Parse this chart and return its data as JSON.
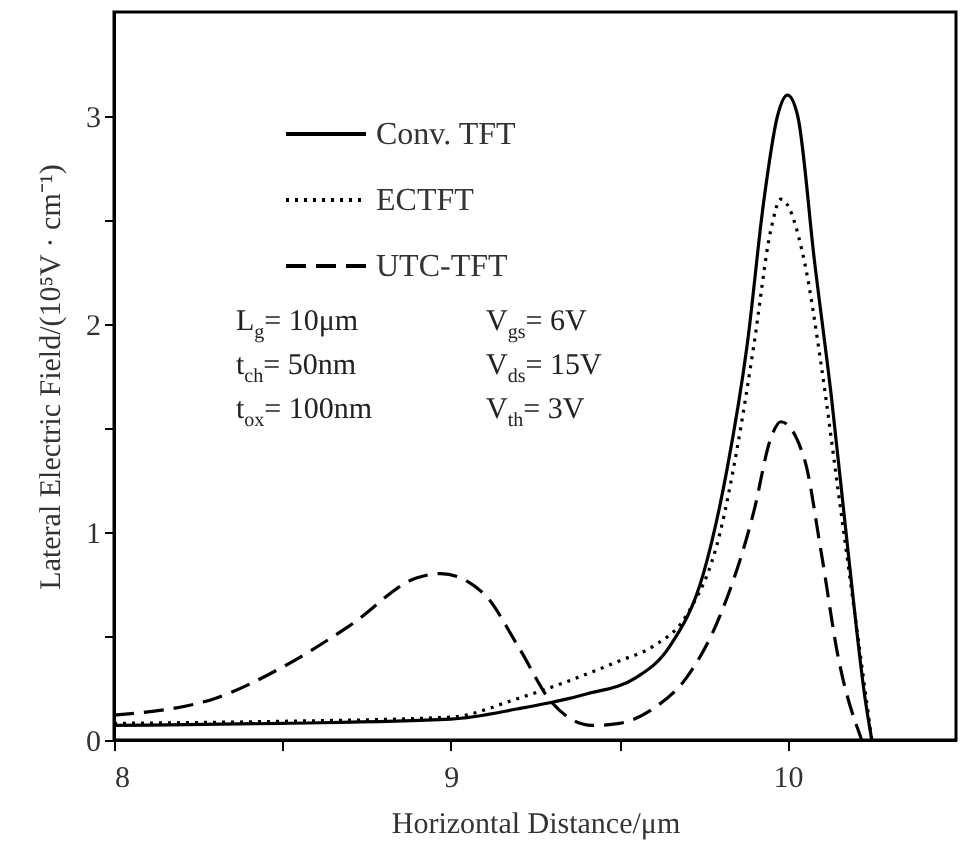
{
  "chart_data": {
    "type": "line",
    "xlabel": "Horizontal Distance/μm",
    "ylabel": "Lateral Electric Field/(10⁵V · cm⁻¹)",
    "xlim": [
      8,
      10.5
    ],
    "ylim": [
      0,
      3.5
    ],
    "xticks": [
      8,
      {
        "value": 8.5,
        "label": null
      },
      9,
      {
        "value": 9.5,
        "label": null
      },
      10
    ],
    "yticks": [
      0,
      {
        "value": 0.5,
        "label": null
      },
      1,
      {
        "value": 1.5,
        "label": null
      },
      2,
      {
        "value": 2.5,
        "label": null
      },
      3
    ],
    "grid": false,
    "legend": "top left",
    "marker": "none",
    "series": [
      {
        "name": "Conv. TFT",
        "color": "#000000",
        "line_style": "solid",
        "x": [
          8,
          8.5,
          9,
          9.2,
          9.4,
          9.55,
          9.65,
          9.75,
          9.82,
          9.88,
          9.93,
          9.97,
          10.0,
          10.03,
          10.08,
          10.13,
          10.18,
          10.23,
          10.25
        ],
        "values": [
          0.07,
          0.08,
          0.1,
          0.15,
          0.22,
          0.3,
          0.45,
          0.8,
          1.3,
          1.9,
          2.6,
          3.0,
          3.1,
          3.0,
          2.3,
          1.65,
          0.9,
          0.2,
          0
        ]
      },
      {
        "name": "ECTFT",
        "color": "#000000",
        "line_style": "dotted",
        "x": [
          8,
          8.5,
          9,
          9.2,
          9.5,
          9.6,
          9.7,
          9.8,
          9.85,
          9.9,
          9.95,
          9.98,
          10.05,
          10.1,
          10.15,
          10.2,
          10.25
        ],
        "values": [
          0.08,
          0.09,
          0.11,
          0.2,
          0.38,
          0.45,
          0.6,
          1.0,
          1.4,
          1.9,
          2.45,
          2.6,
          2.3,
          1.8,
          1.2,
          0.6,
          0
        ]
      },
      {
        "name": "UTC-TFT",
        "color": "#000000",
        "line_style": "dashed",
        "x": [
          8,
          8.3,
          8.5,
          8.7,
          8.9,
          8.97,
          9.1,
          9.2,
          9.3,
          9.42,
          9.5,
          9.6,
          9.7,
          9.8,
          9.9,
          9.95,
          9.98,
          10.05,
          10.1,
          10.15,
          10.22
        ],
        "values": [
          0.12,
          0.2,
          0.35,
          0.55,
          0.78,
          0.8,
          0.7,
          0.45,
          0.18,
          0.07,
          0.08,
          0.15,
          0.3,
          0.6,
          1.1,
          1.45,
          1.53,
          1.35,
          0.9,
          0.4,
          0
        ]
      }
    ],
    "annotations": [
      "L$_{g}$= 10μm",
      "V$_{gs}$= 6V",
      "t$_{ch}$= 50nm",
      "V$_{ds}$= 15V",
      "t$_{ox}$= 100nm",
      "V$_{th}$= 3V"
    ]
  }
}
